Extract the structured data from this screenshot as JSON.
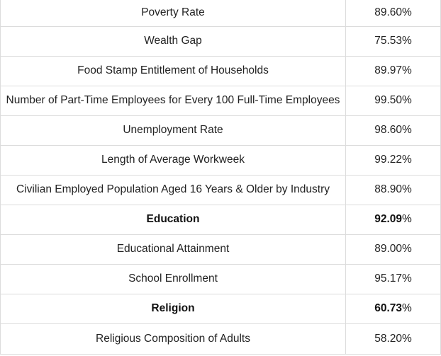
{
  "rows": [
    {
      "label": "Poverty Rate",
      "value": "89.60%",
      "category": false
    },
    {
      "label": "Wealth Gap",
      "value": "75.53%",
      "category": false
    },
    {
      "label": "Food Stamp Entitlement of Households",
      "value": "89.97%",
      "category": false
    },
    {
      "label": "Number of Part-Time Employees for Every 100 Full-Time Employees",
      "value": "99.50%",
      "category": false
    },
    {
      "label": "Unemployment Rate",
      "value": "98.60%",
      "category": false
    },
    {
      "label": "Length of Average Workweek",
      "value": "99.22%",
      "category": false
    },
    {
      "label": "Civilian Employed Population Aged 16 Years & Older by Industry",
      "value": "88.90%",
      "category": false
    },
    {
      "label": "Education",
      "value": "92.09",
      "value_suffix": "%",
      "category": true
    },
    {
      "label": "Educational Attainment",
      "value": "89.00%",
      "category": false
    },
    {
      "label": "School Enrollment",
      "value": "95.17%",
      "category": false
    },
    {
      "label": "Religion",
      "value": "60.73",
      "value_suffix": "%",
      "category": true
    },
    {
      "label": "Religious Composition of Adults",
      "value": "58.20%",
      "category": false
    }
  ]
}
